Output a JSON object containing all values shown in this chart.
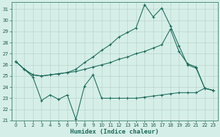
{
  "xlabel": "Humidex (Indice chaleur)",
  "background_color": "#d6eee8",
  "grid_color": "#b8d4cc",
  "line_color": "#1a6b5a",
  "xlim": [
    -0.5,
    23.5
  ],
  "ylim": [
    21,
    31.6
  ],
  "yticks": [
    21,
    22,
    23,
    24,
    25,
    26,
    27,
    28,
    29,
    30,
    31
  ],
  "xticks": [
    0,
    1,
    2,
    3,
    4,
    5,
    6,
    7,
    8,
    9,
    10,
    11,
    12,
    13,
    14,
    15,
    16,
    17,
    18,
    19,
    20,
    21,
    22,
    23
  ],
  "line1_x": [
    0,
    1,
    2,
    3,
    4,
    5,
    6,
    7,
    8,
    9,
    10,
    11,
    12,
    13,
    14,
    15,
    16,
    17,
    18,
    19,
    20,
    21,
    22,
    23
  ],
  "line1_y": [
    26.3,
    25.6,
    24.9,
    22.8,
    23.3,
    22.9,
    23.3,
    21.1,
    24.1,
    25.1,
    23.0,
    23.0,
    23.0,
    23.0,
    23.0,
    23.1,
    23.2,
    23.3,
    23.4,
    23.5,
    23.5,
    23.5,
    23.9,
    23.7
  ],
  "line2_x": [
    0,
    1,
    2,
    3,
    4,
    5,
    6,
    7,
    8,
    9,
    10,
    11,
    12,
    13,
    14,
    15,
    16,
    17,
    18,
    19,
    20,
    21,
    22,
    23
  ],
  "line2_y": [
    26.3,
    25.6,
    25.1,
    25.0,
    25.1,
    25.2,
    25.3,
    25.4,
    25.6,
    25.8,
    26.0,
    26.2,
    26.5,
    26.7,
    27.0,
    27.2,
    27.5,
    27.8,
    29.2,
    27.2,
    26.1,
    25.8,
    23.9,
    23.7
  ],
  "line3_x": [
    0,
    1,
    2,
    3,
    4,
    5,
    6,
    7,
    8,
    9,
    10,
    11,
    12,
    13,
    14,
    15,
    16,
    17,
    18,
    19,
    20,
    21,
    22,
    23
  ],
  "line3_y": [
    26.3,
    25.6,
    25.1,
    25.0,
    25.1,
    25.2,
    25.3,
    25.6,
    26.2,
    26.7,
    27.3,
    27.8,
    28.5,
    28.9,
    29.3,
    31.4,
    30.3,
    31.1,
    29.5,
    27.7,
    26.0,
    25.7,
    23.9,
    23.7
  ]
}
